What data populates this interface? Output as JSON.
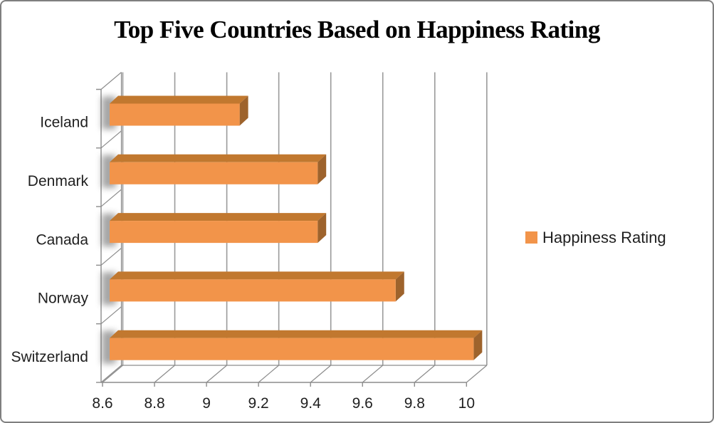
{
  "frame": {
    "border_color": "#7F7F7F",
    "background": "#FFFFFF"
  },
  "chart_data": {
    "type": "bar",
    "orientation": "horizontal",
    "style": "3d",
    "title": "Top Five Countries Based on Happiness Rating",
    "legend": {
      "label": "Happiness Rating",
      "position": "right"
    },
    "categories": [
      "Iceland",
      "Denmark",
      "Canada",
      "Norway",
      "Switzerland"
    ],
    "series": [
      {
        "name": "Happiness Rating",
        "values": [
          9.1,
          9.4,
          9.4,
          9.7,
          10.0
        ]
      }
    ],
    "xlabel": "",
    "ylabel": "",
    "xlim": [
      8.6,
      10
    ],
    "xticks": [
      "8.6",
      "8.8",
      "9",
      "9.2",
      "9.4",
      "9.6",
      "9.8",
      "10"
    ],
    "grid": true,
    "colors": {
      "bar_front": "#F2944A",
      "bar_top": "#C1782F",
      "bar_side": "#9E632C",
      "gridline": "#9A9A9A",
      "wall": "#8C8C8C",
      "text": "#1F1F1F",
      "title": "#000000",
      "shadow": "#4D4D4D"
    }
  }
}
